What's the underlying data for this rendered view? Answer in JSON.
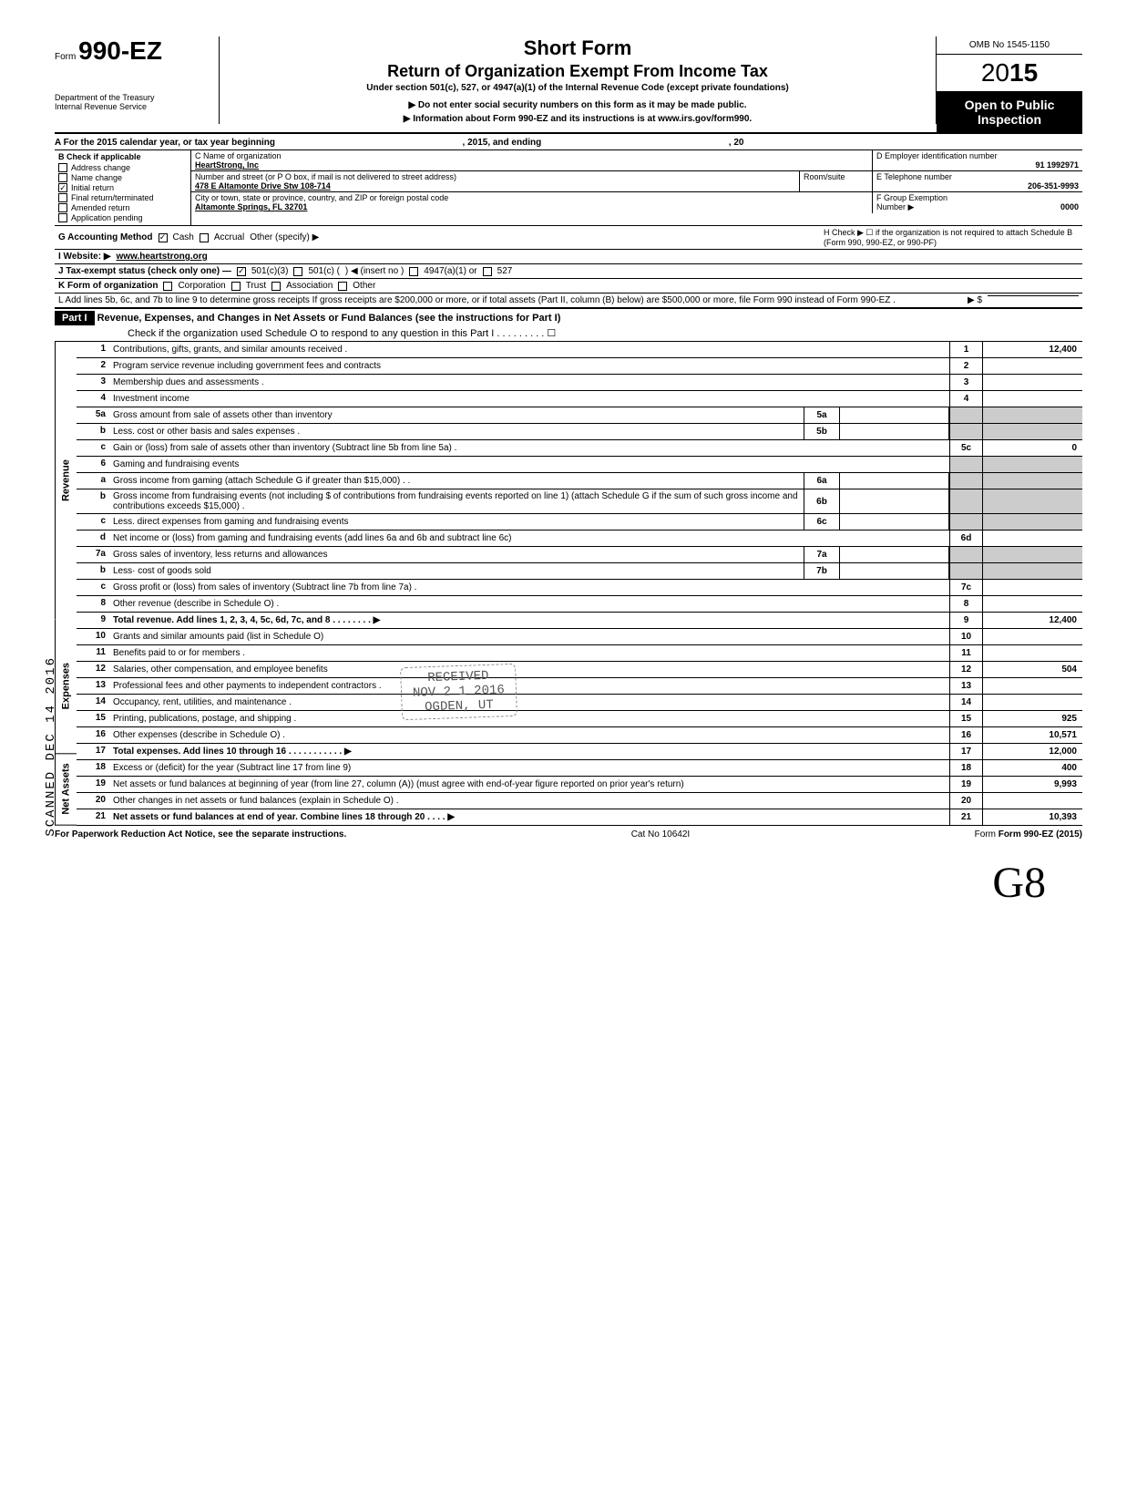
{
  "header": {
    "form_label": "Form",
    "form_number": "990-EZ",
    "title_short": "Short Form",
    "title_main": "Return of Organization Exempt From Income Tax",
    "title_sub": "Under section 501(c), 527, or 4947(a)(1) of the Internal Revenue Code (except private foundations)",
    "note1": "▶ Do not enter social security numbers on this form as it may be made public.",
    "note2": "▶ Information about Form 990-EZ and its instructions is at www.irs.gov/form990.",
    "dept1": "Department of the Treasury",
    "dept2": "Internal Revenue Service",
    "omb": "OMB No 1545-1150",
    "year_prefix": "20",
    "year_bold": "15",
    "open1": "Open to Public",
    "open2": "Inspection"
  },
  "rowA": {
    "label_a": "A For the 2015 calendar year, or tax year beginning",
    "mid": ", 2015, and ending",
    "end": ", 20"
  },
  "colB": {
    "header": "B  Check if applicable",
    "items": [
      "Address change",
      "Name change",
      "Initial return",
      "Final return/terminated",
      "Amended return",
      "Application pending"
    ],
    "checked_index": 2
  },
  "colC": {
    "name_label": "C  Name of organization",
    "name_val": "HeartStrong, Inc",
    "addr_label": "Number and street (or P O  box, if mail is not delivered to street address)",
    "addr_val": "478 E Altamonte Drive Stw 108-714",
    "city_label": "City or town, state or province, country, and ZIP or foreign postal code",
    "city_val": "Altamonte Springs, FL 32701",
    "room_label": "Room/suite"
  },
  "colD": {
    "label": "D Employer identification number",
    "val": "91 1992971"
  },
  "colE": {
    "label": "E Telephone number",
    "val": "206-351-9993"
  },
  "colF": {
    "label": "F Group Exemption",
    "label2": "Number ▶",
    "val": "0000"
  },
  "rowG": {
    "g": "G  Accounting Method",
    "cash": "Cash",
    "accrual": "Accrual",
    "other": "Other (specify) ▶",
    "h": "H  Check ▶ ☐ if the organization is not required to attach Schedule B (Form 990, 990-EZ, or 990-PF)"
  },
  "rowI": {
    "label": "I   Website: ▶",
    "val": "www.heartstrong.org"
  },
  "rowJ": {
    "label": "J  Tax-exempt status (check only one) —",
    "c1": "501(c)(3)",
    "c2": "501(c) (",
    "c3": ") ◀ (insert no )",
    "c4": "4947(a)(1) or",
    "c5": "527"
  },
  "rowK": {
    "label": "K  Form of organization",
    "o1": "Corporation",
    "o2": "Trust",
    "o3": "Association",
    "o4": "Other"
  },
  "rowL": {
    "text": "L  Add lines 5b, 6c, and 7b to line 9 to determine gross receipts  If gross receipts are $200,000 or more, or if total assets (Part II, column (B) below) are $500,000 or more, file Form 990 instead of Form 990-EZ .",
    "arrow": "▶   $"
  },
  "part1": {
    "label": "Part I",
    "title": "Revenue, Expenses, and Changes in Net Assets or Fund Balances (see the instructions for Part I)",
    "check": "Check if the organization used Schedule O to respond to any question in this Part I  .   .   .   .   .   .   .   .   .   ☐"
  },
  "sections": {
    "revenue": "Revenue",
    "expenses": "Expenses",
    "netassets": "Net Assets"
  },
  "lines": [
    {
      "n": "1",
      "d": "Contributions, gifts, grants, and similar amounts received .",
      "box": "1",
      "v": "12,400"
    },
    {
      "n": "2",
      "d": "Program service revenue including government fees and contracts",
      "box": "2",
      "v": ""
    },
    {
      "n": "3",
      "d": "Membership dues and assessments .",
      "box": "3",
      "v": ""
    },
    {
      "n": "4",
      "d": "Investment income",
      "box": "4",
      "v": ""
    },
    {
      "n": "5a",
      "d": "Gross amount from sale of assets other than inventory",
      "sub": "5a"
    },
    {
      "n": "b",
      "d": "Less. cost or other basis and sales expenses .",
      "sub": "5b"
    },
    {
      "n": "c",
      "d": "Gain or (loss) from sale of assets other than inventory (Subtract line 5b from line 5a) .",
      "box": "5c",
      "v": "0"
    },
    {
      "n": "6",
      "d": "Gaming and fundraising events"
    },
    {
      "n": "a",
      "d": "Gross income from gaming (attach Schedule G if greater than $15,000) .  .",
      "sub": "6a"
    },
    {
      "n": "b",
      "d": "Gross income from fundraising events (not including  $                         of contributions from fundraising events reported on line 1) (attach Schedule G if the sum of such gross income and contributions exceeds $15,000) .",
      "sub": "6b"
    },
    {
      "n": "c",
      "d": "Less. direct expenses from gaming and fundraising events",
      "sub": "6c"
    },
    {
      "n": "d",
      "d": "Net income or (loss) from gaming and fundraising events (add lines 6a and 6b and subtract line 6c)",
      "box": "6d",
      "v": ""
    },
    {
      "n": "7a",
      "d": "Gross sales of inventory, less returns and allowances",
      "sub": "7a"
    },
    {
      "n": "b",
      "d": "Less· cost of goods sold",
      "sub": "7b"
    },
    {
      "n": "c",
      "d": "Gross profit or (loss) from sales of inventory (Subtract line 7b from line 7a)  .",
      "box": "7c",
      "v": ""
    },
    {
      "n": "8",
      "d": "Other revenue (describe in Schedule O) .",
      "box": "8",
      "v": ""
    },
    {
      "n": "9",
      "d": "Total revenue. Add lines 1, 2, 3, 4, 5c, 6d, 7c, and 8   .   .   .   .   .   .   .   .   ▶",
      "box": "9",
      "v": "12,400",
      "bold": true
    },
    {
      "n": "10",
      "d": "Grants and similar amounts paid (list in Schedule O)",
      "box": "10",
      "v": ""
    },
    {
      "n": "11",
      "d": "Benefits paid to or for members  .",
      "box": "11",
      "v": ""
    },
    {
      "n": "12",
      "d": "Salaries, other compensation, and employee benefits",
      "box": "12",
      "v": "504"
    },
    {
      "n": "13",
      "d": "Professional fees and other payments to independent contractors .",
      "box": "13",
      "v": ""
    },
    {
      "n": "14",
      "d": "Occupancy, rent, utilities, and maintenance .",
      "box": "14",
      "v": ""
    },
    {
      "n": "15",
      "d": "Printing, publications, postage, and shipping .",
      "box": "15",
      "v": "925"
    },
    {
      "n": "16",
      "d": "Other expenses (describe in Schedule O)  .",
      "box": "16",
      "v": "10,571"
    },
    {
      "n": "17",
      "d": "Total expenses. Add lines 10 through 16   .   .   .   .   .   .   .   .   .   .   .   ▶",
      "box": "17",
      "v": "12,000",
      "bold": true
    },
    {
      "n": "18",
      "d": "Excess or (deficit) for the year (Subtract line 17 from line 9)",
      "box": "18",
      "v": "400"
    },
    {
      "n": "19",
      "d": "Net assets or fund balances at beginning of year (from line 27, column (A)) (must agree with end-of-year figure reported on prior year's return)",
      "box": "19",
      "v": "9,993"
    },
    {
      "n": "20",
      "d": "Other changes in net assets or fund balances (explain in Schedule O) .",
      "box": "20",
      "v": ""
    },
    {
      "n": "21",
      "d": "Net assets or fund balances at end of year. Combine lines 18 through 20   .   .   .   .   ▶",
      "box": "21",
      "v": "10,393",
      "bold": true
    }
  ],
  "stamps": {
    "received": "RECEIVED",
    "date": "NOV 2 1 2016",
    "ogden": "OGDEN, UT",
    "scanned": "SCANNED DEC 14 2016"
  },
  "footer": {
    "left": "For Paperwork Reduction Act Notice, see the separate instructions.",
    "mid": "Cat  No  10642I",
    "right": "Form 990-EZ (2015)"
  },
  "signature": "G8"
}
